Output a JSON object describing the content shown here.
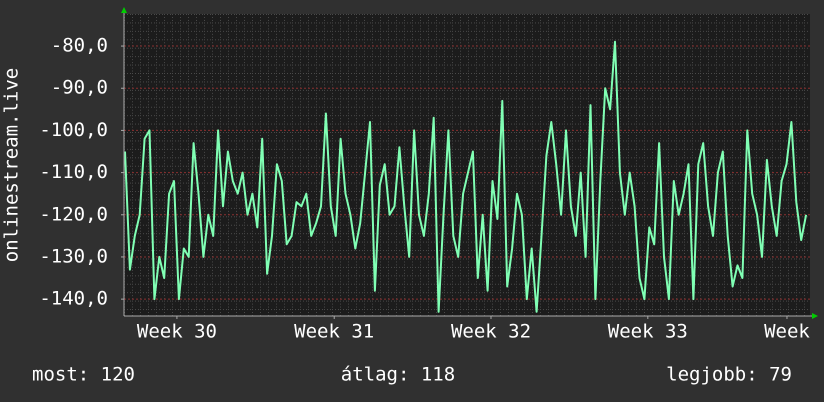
{
  "chart_data": {
    "type": "line",
    "ylabel": "onlinestream.live",
    "x": [
      0,
      1,
      2,
      3,
      4,
      5,
      6,
      7,
      8,
      9,
      10,
      11,
      12,
      13,
      14,
      15,
      16,
      17,
      18,
      19,
      20,
      21,
      22,
      23,
      24,
      25,
      26,
      27,
      28,
      29,
      30,
      31,
      32,
      33,
      34,
      35,
      36,
      37,
      38,
      39,
      40,
      41,
      42,
      43,
      44,
      45,
      46,
      47,
      48,
      49,
      50,
      51,
      52,
      53,
      54,
      55,
      56,
      57,
      58,
      59,
      60,
      61,
      62,
      63,
      64,
      65,
      66,
      67,
      68,
      69,
      70,
      71,
      72,
      73,
      74,
      75,
      76,
      77,
      78,
      79,
      80,
      81,
      82,
      83,
      84,
      85,
      86,
      87,
      88,
      89,
      90,
      91,
      92,
      93,
      94,
      95,
      96,
      97,
      98,
      99,
      100,
      101,
      102,
      103,
      104,
      105,
      106,
      107,
      108,
      109,
      110,
      111,
      112,
      113,
      114,
      115,
      116,
      117,
      118,
      119,
      120,
      121,
      122,
      123,
      124,
      125,
      126,
      127,
      128,
      129,
      130,
      131,
      132,
      133,
      134,
      135,
      136,
      137,
      138,
      139
    ],
    "series": [
      {
        "color": "#80ffb4",
        "values": [
          -105,
          -133,
          -125,
          -120,
          -102,
          -100,
          -140,
          -130,
          -135,
          -115,
          -112,
          -140,
          -128,
          -130,
          -103,
          -115,
          -130,
          -120,
          -125,
          -100,
          -118,
          -105,
          -112,
          -115,
          -110,
          -120,
          -115,
          -123,
          -102,
          -134,
          -125,
          -108,
          -112,
          -127,
          -125,
          -117,
          -118,
          -115,
          -125,
          -122,
          -118,
          -96,
          -118,
          -125,
          -102,
          -115,
          -120,
          -128,
          -122,
          -110,
          -98,
          -138,
          -113,
          -108,
          -120,
          -118,
          -104,
          -118,
          -130,
          -100,
          -120,
          -125,
          -115,
          -97,
          -143,
          -120,
          -100,
          -125,
          -130,
          -115,
          -110,
          -105,
          -135,
          -120,
          -138,
          -112,
          -121,
          -93,
          -137,
          -128,
          -115,
          -120,
          -140,
          -128,
          -143,
          -125,
          -106,
          -98,
          -108,
          -120,
          -100,
          -118,
          -125,
          -110,
          -130,
          -94,
          -140,
          -112,
          -90,
          -95,
          -79,
          -110,
          -120,
          -110,
          -118,
          -135,
          -140,
          -123,
          -127,
          -103,
          -130,
          -140,
          -112,
          -120,
          -115,
          -108,
          -140,
          -108,
          -103,
          -118,
          -125,
          -110,
          -105,
          -125,
          -137,
          -132,
          -135,
          -100,
          -115,
          -120,
          -130,
          -107,
          -118,
          -125,
          -112,
          -108,
          -98,
          -117,
          -126,
          -120
        ]
      }
    ],
    "xlim": [
      -0.2,
      139.8
    ],
    "xticks": [
      {
        "value": 10.6,
        "label": "Week 30"
      },
      {
        "value": 42.7,
        "label": "Week 31"
      },
      {
        "value": 74.7,
        "label": "Week 32"
      },
      {
        "value": 106.7,
        "label": "Week 33"
      },
      {
        "value": 135.1,
        "label": "Week"
      }
    ],
    "ylim": [
      -144,
      -72.4
    ],
    "yticks": [
      {
        "value": -80,
        "label": "-80,0"
      },
      {
        "value": -90,
        "label": "-90,0"
      },
      {
        "value": -100,
        "label": "-100,0"
      },
      {
        "value": -110,
        "label": "-110,0"
      },
      {
        "value": -120,
        "label": "-120,0"
      },
      {
        "value": -130,
        "label": "-130,0"
      },
      {
        "value": -140,
        "label": "-140,0"
      }
    ],
    "grid": true,
    "footer": [
      "most: 120",
      "átlag: 118",
      "legjobb: 79"
    ]
  }
}
